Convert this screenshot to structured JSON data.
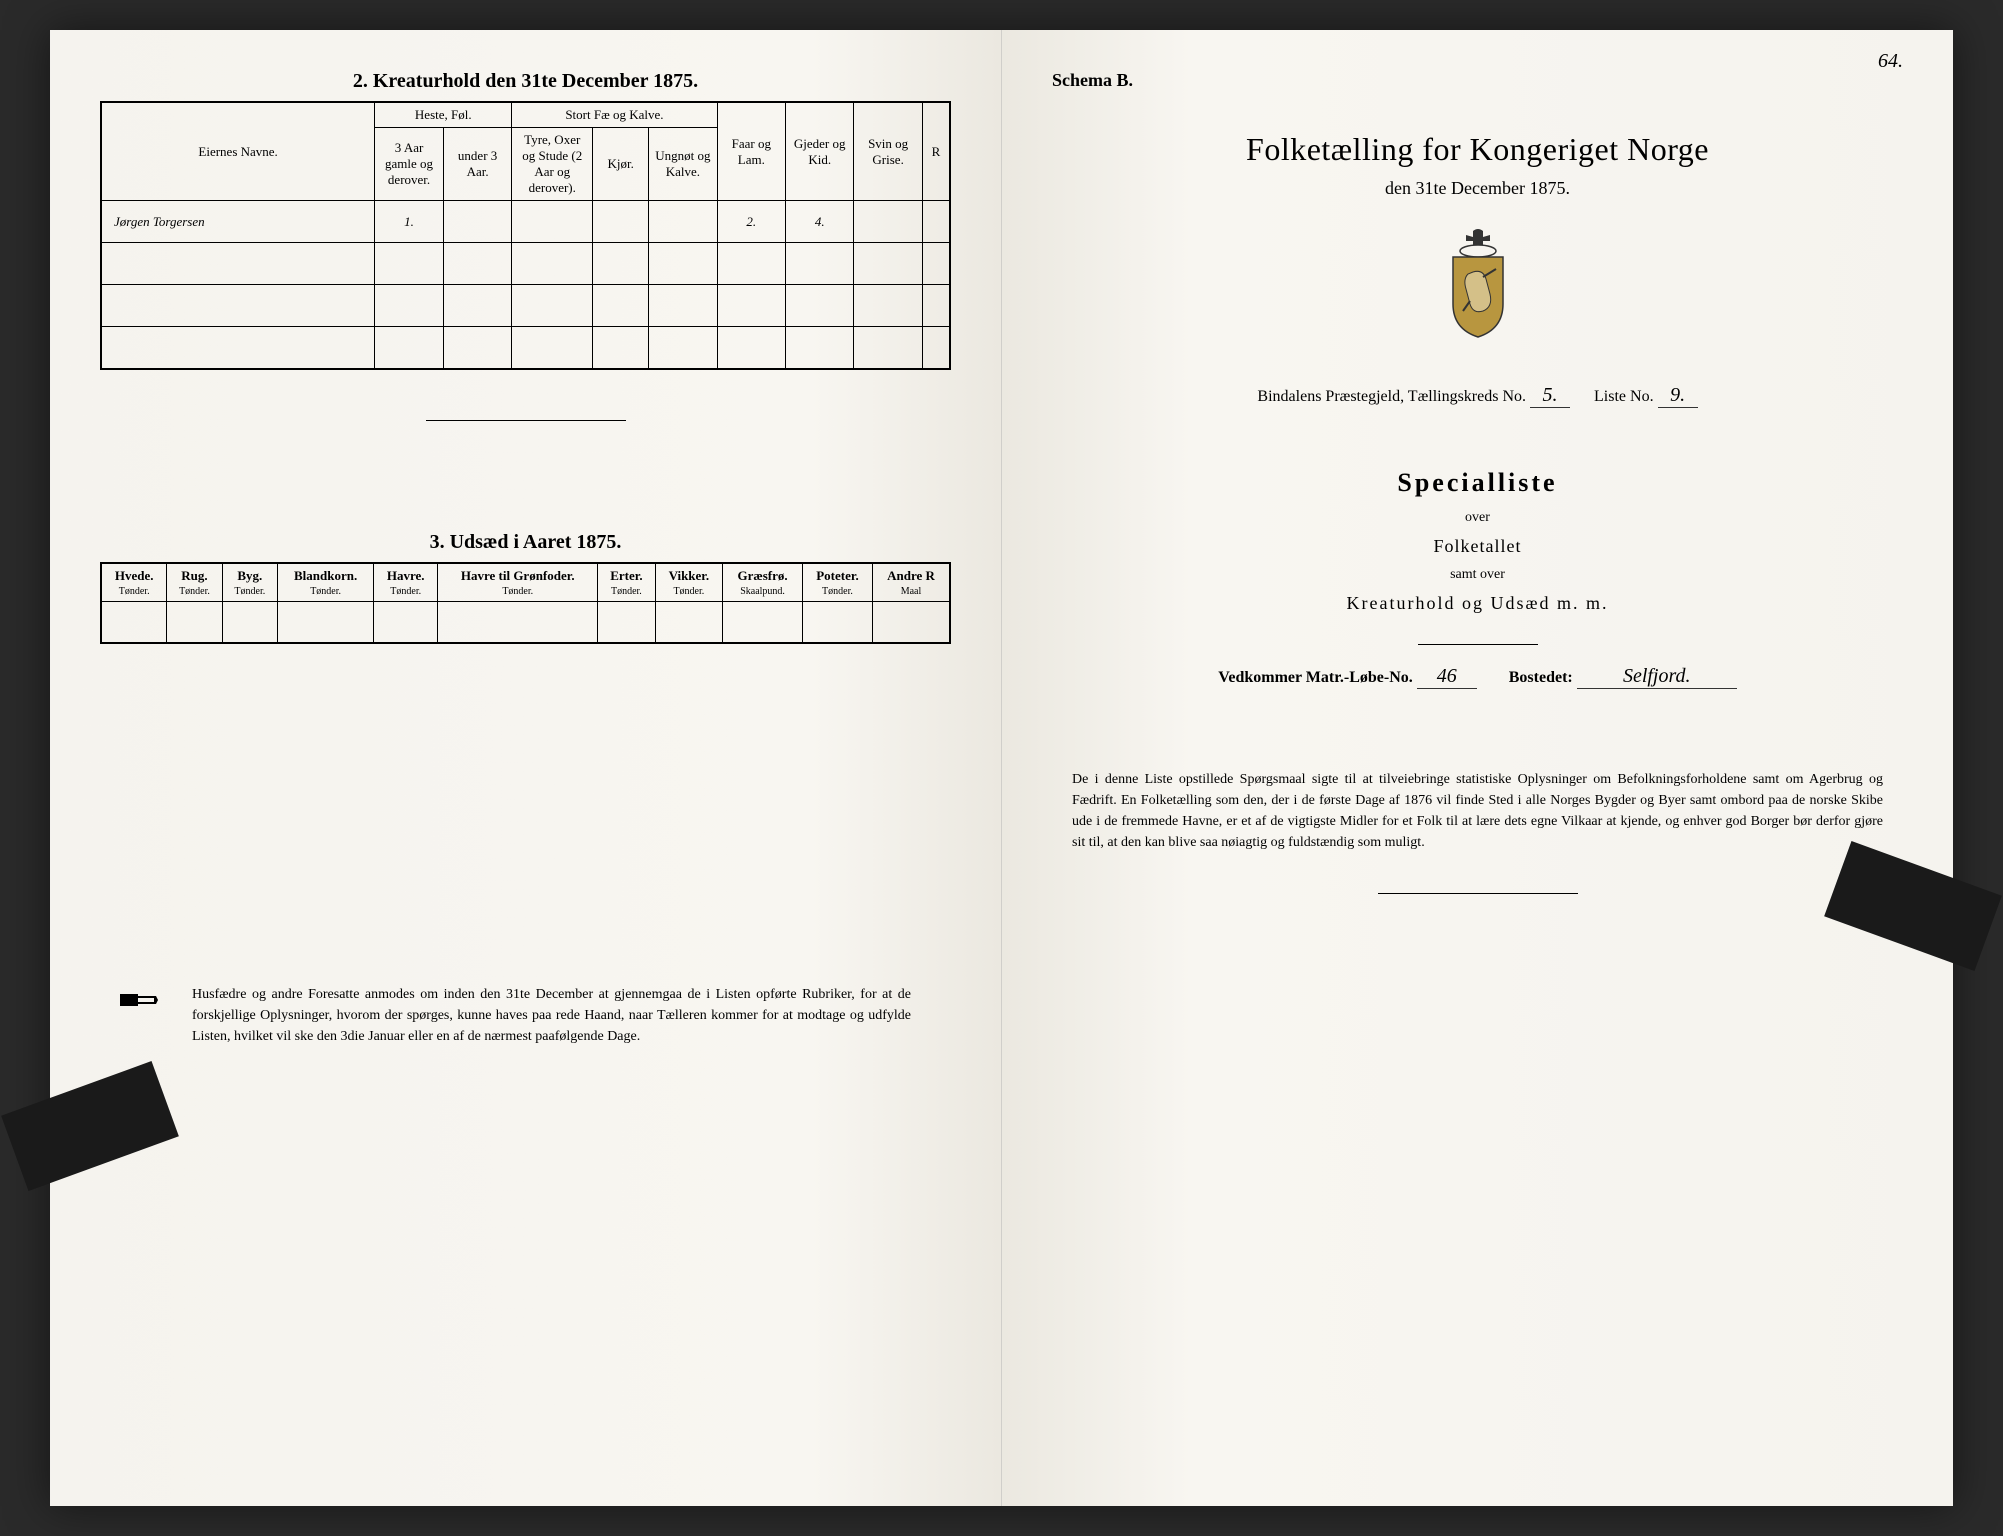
{
  "colors": {
    "page_bg": "#f5f3ee",
    "ink": "#1a1a1a",
    "border": "#000000",
    "outer_bg": "#2a2a2a"
  },
  "left": {
    "section2_title": "2.  Kreaturhold den 31te December 1875.",
    "table2": {
      "col_eiernes_navne": "Eiernes Navne.",
      "group_heste": "Heste, Føl.",
      "group_stort": "Stort Fæ og Kalve.",
      "col_heste_3aar": "3 Aar gamle og derover.",
      "col_heste_under3": "under 3 Aar.",
      "col_tyre": "Tyre, Oxer og Stude (2 Aar og derover).",
      "col_kjor": "Kjør.",
      "col_ungnot": "Ungnøt og Kalve.",
      "col_faar": "Faar og Lam.",
      "col_gjeder": "Gjeder og Kid.",
      "col_svin": "Svin og Grise.",
      "col_ren": "R",
      "row1_name": "Jørgen Torgersen",
      "row1_heste_3aar": "1.",
      "row1_faar": "2.",
      "row1_gjeder": "4."
    },
    "section3_title": "3.  Udsæd i Aaret 1875.",
    "table3": {
      "cols": [
        {
          "label": "Hvede.",
          "unit": "Tønder."
        },
        {
          "label": "Rug.",
          "unit": "Tønder."
        },
        {
          "label": "Byg.",
          "unit": "Tønder."
        },
        {
          "label": "Blandkorn.",
          "unit": "Tønder."
        },
        {
          "label": "Havre.",
          "unit": "Tønder."
        },
        {
          "label": "Havre til Grønfoder.",
          "unit": "Tønder."
        },
        {
          "label": "Erter.",
          "unit": "Tønder."
        },
        {
          "label": "Vikker.",
          "unit": "Tønder."
        },
        {
          "label": "Græsfrø.",
          "unit": "Skaalpund."
        },
        {
          "label": "Poteter.",
          "unit": "Tønder."
        },
        {
          "label": "Andre R",
          "unit": "Maal"
        }
      ]
    },
    "footer": "Husfædre og andre Foresatte anmodes om inden den 31te December at gjennemgaa de i Listen opførte Rubriker, for at de forskjellige Oplysninger, hvorom der spørges, kunne haves paa rede Haand, naar Tælleren kommer for at modtage og udfylde Listen, hvilket vil ske den 3die Januar eller en af de nærmest paafølgende Dage."
  },
  "right": {
    "page_number": "64.",
    "schema": "Schema B.",
    "main_title": "Folketælling for Kongeriget Norge",
    "subtitle": "den 31te December 1875.",
    "parish_prefix": "Bindalens",
    "parish_label": "Præstegjeld,  Tællingskreds No.",
    "parish_kreds_value": "5.",
    "liste_label": "Liste No.",
    "liste_value": "9.",
    "specialliste": "Specialliste",
    "over": "over",
    "folketallet": "Folketallet",
    "samt_over": "samt over",
    "kreatur": "Kreaturhold og Udsæd m. m.",
    "matr_label": "Vedkommer Matr.-Løbe-No.",
    "matr_value": "46",
    "bosted_label": "Bostedet:",
    "bosted_value": "Selfjord.",
    "footer": "De i denne Liste opstillede Spørgsmaal sigte til at tilveiebringe statistiske Oplysninger om Befolkningsforholdene samt om Agerbrug og Fædrift.  En Folketælling som den, der i de første Dage af 1876 vil finde Sted i alle Norges Bygder og Byer samt ombord paa de norske Skibe ude i de fremmede Havne, er et af de vigtigste Midler for et Folk til at lære dets egne Vilkaar at kjende, og enhver god Borger bør derfor gjøre sit til, at den kan blive saa nøiagtig og fuldstændig som muligt."
  }
}
